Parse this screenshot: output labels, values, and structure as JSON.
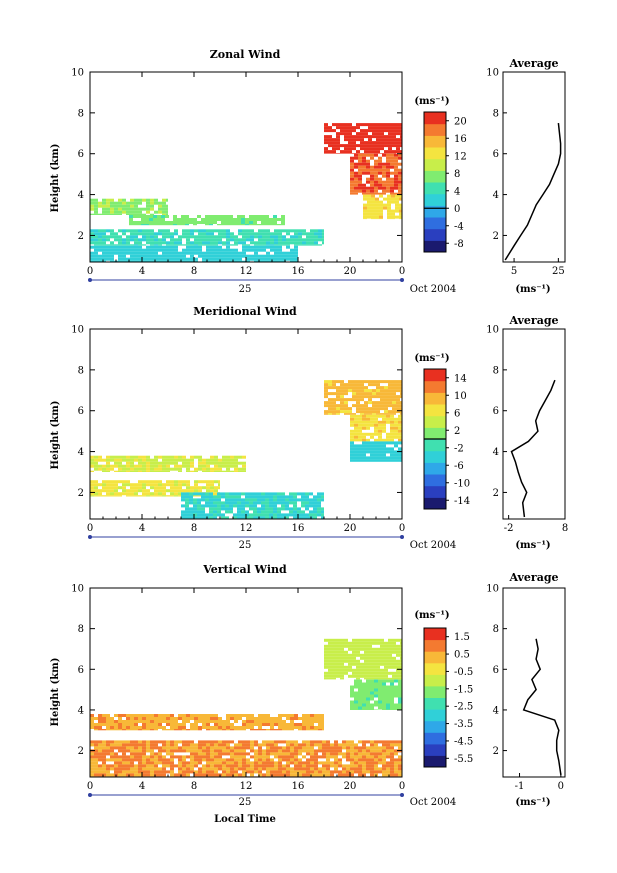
{
  "figure": {
    "date_label": "Oct 2004",
    "day_label": "25",
    "xlabel": "Local Time",
    "ylabel": "Height (km)",
    "x_ticks": [
      "0",
      "4",
      "8",
      "12",
      "16",
      "20",
      "0"
    ],
    "y_ticks": [
      "2",
      "4",
      "6",
      "8",
      "10"
    ],
    "avg_title": "Average",
    "unit_label": "(ms⁻¹)",
    "colormap": [
      "#1a1a6e",
      "#2a3fbf",
      "#2f6ee0",
      "#2fa8e8",
      "#30d0d8",
      "#40e0b0",
      "#80ec70",
      "#c8ee4a",
      "#f4e440",
      "#f8b838",
      "#f47a30",
      "#e83020"
    ]
  },
  "chart_data": [
    {
      "type": "heatmap",
      "title": "Zonal Wind",
      "xlabel": "",
      "ylabel": "Height (km)",
      "xlim": [
        0,
        24
      ],
      "ylim": [
        0.7,
        10
      ],
      "colorbar": {
        "ticks": [
          "20",
          "16",
          "12",
          "8",
          "4",
          "0",
          "-4",
          "-8"
        ],
        "range": [
          -10,
          22
        ],
        "zero_line": 0
      },
      "regions": [
        {
          "x": [
            18,
            24
          ],
          "y": [
            6.0,
            7.5
          ],
          "value": 21
        },
        {
          "x": [
            20,
            24
          ],
          "y": [
            4.0,
            6.0
          ],
          "value": 19
        },
        {
          "x": [
            21,
            24
          ],
          "y": [
            2.8,
            4.0
          ],
          "value": 13
        },
        {
          "x": [
            0,
            6
          ],
          "y": [
            3.0,
            3.8
          ],
          "value": 8
        },
        {
          "x": [
            3,
            15
          ],
          "y": [
            2.5,
            3.0
          ],
          "value": 7
        },
        {
          "x": [
            0,
            18
          ],
          "y": [
            1.5,
            2.3
          ],
          "value": 4
        },
        {
          "x": [
            0,
            16
          ],
          "y": [
            0.7,
            1.5
          ],
          "value": 2
        }
      ],
      "average_profile": {
        "xticks": [
          "5",
          "25"
        ],
        "xlim": [
          0,
          28
        ],
        "height": [
          0.8,
          1.5,
          2.0,
          2.5,
          3.0,
          3.5,
          4.0,
          4.5,
          5.0,
          5.5,
          6.0,
          6.5,
          7.0,
          7.5
        ],
        "value": [
          1,
          5,
          8,
          11,
          13,
          15,
          18,
          21,
          23,
          25,
          26,
          26,
          25.5,
          25
        ]
      }
    },
    {
      "type": "heatmap",
      "title": "Meridional Wind",
      "xlabel": "",
      "ylabel": "Height (km)",
      "xlim": [
        0,
        24
      ],
      "ylim": [
        0.7,
        10
      ],
      "colorbar": {
        "ticks": [
          "14",
          "10",
          "6",
          "2",
          "-2",
          "-6",
          "-10",
          "-14"
        ],
        "range": [
          -16,
          16
        ],
        "zero_line": 0
      },
      "regions": [
        {
          "x": [
            18,
            24
          ],
          "y": [
            5.8,
            7.5
          ],
          "value": 9
        },
        {
          "x": [
            20,
            24
          ],
          "y": [
            4.5,
            5.8
          ],
          "value": 7
        },
        {
          "x": [
            20,
            24
          ],
          "y": [
            3.5,
            4.5
          ],
          "value": -4
        },
        {
          "x": [
            0,
            12
          ],
          "y": [
            3.0,
            3.8
          ],
          "value": 5
        },
        {
          "x": [
            0,
            10
          ],
          "y": [
            1.8,
            2.6
          ],
          "value": 6
        },
        {
          "x": [
            7,
            18
          ],
          "y": [
            0.7,
            2.0
          ],
          "value": -3
        }
      ],
      "average_profile": {
        "xticks": [
          "-2",
          "8"
        ],
        "xlim": [
          -3,
          8
        ],
        "height": [
          0.8,
          1.5,
          2.0,
          2.5,
          3.0,
          3.5,
          4.0,
          4.5,
          5.0,
          5.5,
          6.0,
          6.5,
          7.0,
          7.5
        ],
        "value": [
          0.8,
          0.5,
          1.2,
          0.3,
          -0.3,
          -0.8,
          -1.5,
          1.5,
          3.2,
          2.8,
          3.5,
          4.5,
          5.5,
          6.2
        ]
      }
    },
    {
      "type": "heatmap",
      "title": "Vertical Wind",
      "xlabel": "Local Time",
      "ylabel": "Height (km)",
      "xlim": [
        0,
        24
      ],
      "ylim": [
        0.7,
        10
      ],
      "colorbar": {
        "ticks": [
          "1.5",
          "0.5",
          "-0.5",
          "-1.5",
          "-2.5",
          "-3.5",
          "-4.5",
          "-5.5"
        ],
        "range": [
          -6.5,
          2
        ],
        "zero_line": null
      },
      "regions": [
        {
          "x": [
            18,
            24
          ],
          "y": [
            5.5,
            7.5
          ],
          "value": -1.2
        },
        {
          "x": [
            20,
            24
          ],
          "y": [
            4.0,
            5.5
          ],
          "value": -2.0
        },
        {
          "x": [
            0,
            18
          ],
          "y": [
            3.0,
            3.8
          ],
          "value": 0.4
        },
        {
          "x": [
            0,
            24
          ],
          "y": [
            0.7,
            2.5
          ],
          "value": 0.6
        }
      ],
      "average_profile": {
        "xticks": [
          "-1",
          "0"
        ],
        "xlim": [
          -1.4,
          0.1
        ],
        "height": [
          0.8,
          1.5,
          2.0,
          2.5,
          3.0,
          3.5,
          4.0,
          4.5,
          5.0,
          5.5,
          6.0,
          6.5,
          7.0,
          7.5
        ],
        "value": [
          0.0,
          -0.05,
          -0.1,
          -0.1,
          -0.05,
          -0.15,
          -0.9,
          -0.8,
          -0.6,
          -0.7,
          -0.5,
          -0.6,
          -0.55,
          -0.6
        ]
      }
    }
  ]
}
